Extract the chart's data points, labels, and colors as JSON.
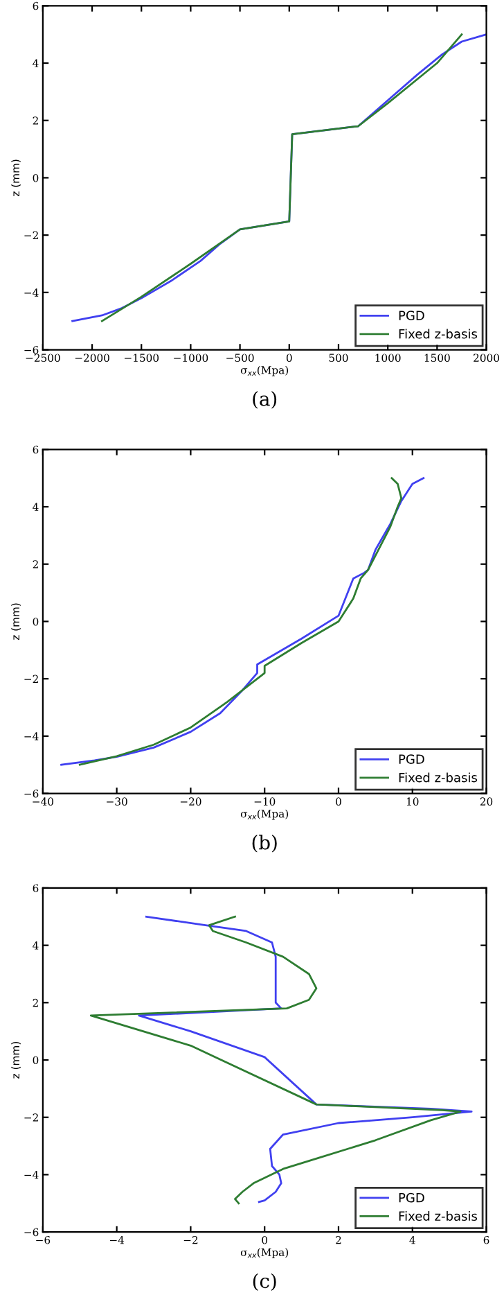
{
  "chart_data": [
    {
      "type": "line",
      "xlabel": "σ$_{xx}$(Mpa)",
      "ylabel": "z (mm)",
      "annotations": [
        "(a)"
      ],
      "xlim": [
        -2500,
        2000
      ],
      "ylim": [
        -6,
        6
      ],
      "xticks": [
        {
          "value": -2500,
          "label": "−2500"
        },
        {
          "value": -2000,
          "label": "−2000"
        },
        {
          "value": -1500,
          "label": "−1500"
        },
        {
          "value": -1000,
          "label": "−1000"
        },
        {
          "value": -500,
          "label": "−500"
        },
        0,
        500,
        1000,
        1500,
        2000
      ],
      "yticks": [
        {
          "value": -6,
          "label": "−6"
        },
        {
          "value": -4,
          "label": "−4"
        },
        {
          "value": -2,
          "label": "−2"
        },
        0,
        2,
        4,
        6
      ],
      "legend": "bottom right",
      "grid": false,
      "series": [
        {
          "name": "PGD",
          "color": "#4040f0",
          "x": [
            -2200,
            -1900,
            -1700,
            -1500,
            -1200,
            -900,
            -700,
            -500,
            0,
            30,
            700,
            1000,
            1300,
            1550,
            1750,
            2000
          ],
          "values": [
            -5,
            -4.8,
            -4.55,
            -4.2,
            -3.6,
            -2.9,
            -2.3,
            -1.8,
            -1.52,
            1.52,
            1.8,
            2.7,
            3.6,
            4.3,
            4.75,
            5
          ]
        },
        {
          "name": "Fixed z-basis",
          "color": "#2e7d32",
          "x": [
            -1900,
            -1500,
            -1000,
            -500,
            0,
            30,
            700,
            1000,
            1500,
            1750
          ],
          "values": [
            -5,
            -4.15,
            -3.0,
            -1.8,
            -1.52,
            1.52,
            1.8,
            2.6,
            4.0,
            5
          ]
        }
      ]
    },
    {
      "type": "line",
      "xlabel": "σ$_{xx}$(Mpa)",
      "ylabel": "z (mm)",
      "annotations": [
        "(b)"
      ],
      "xlim": [
        -40,
        20
      ],
      "ylim": [
        -6,
        6
      ],
      "xticks": [
        {
          "value": -40,
          "label": "−40"
        },
        {
          "value": -30,
          "label": "−30"
        },
        {
          "value": -20,
          "label": "−20"
        },
        {
          "value": -10,
          "label": "−10"
        },
        0,
        10,
        20
      ],
      "yticks": [
        {
          "value": -6,
          "label": "−6"
        },
        {
          "value": -4,
          "label": "−4"
        },
        {
          "value": -2,
          "label": "−2"
        },
        0,
        2,
        4,
        6
      ],
      "legend": "bottom right",
      "grid": false,
      "series": [
        {
          "name": "PGD",
          "color": "#4040f0",
          "x": [
            -37.5,
            -33,
            -30,
            -25,
            -20,
            -16,
            -13,
            -11,
            -11,
            -5,
            0,
            2,
            3.5,
            4,
            5,
            7,
            8.5,
            10,
            11.5
          ],
          "values": [
            -5,
            -4.85,
            -4.72,
            -4.4,
            -3.85,
            -3.2,
            -2.4,
            -1.8,
            -1.5,
            -0.6,
            0.2,
            1.5,
            1.7,
            1.8,
            2.5,
            3.4,
            4.2,
            4.8,
            5
          ]
        },
        {
          "name": "Fixed z-basis",
          "color": "#2e7d32",
          "x": [
            -35,
            -30,
            -25,
            -20,
            -15,
            -12,
            -10,
            -10,
            -5,
            0,
            2,
            3,
            4,
            5,
            7,
            8,
            8.5,
            8,
            7.2
          ],
          "values": [
            -5,
            -4.7,
            -4.3,
            -3.7,
            -2.8,
            -2.2,
            -1.8,
            -1.55,
            -0.75,
            0,
            0.8,
            1.5,
            1.8,
            2.3,
            3.3,
            4,
            4.3,
            4.8,
            5
          ]
        }
      ]
    },
    {
      "type": "line",
      "xlabel": "σ$_{xx}$(Mpa)",
      "ylabel": "z (mm)",
      "annotations": [
        "(c)"
      ],
      "xlim": [
        -6,
        6
      ],
      "ylim": [
        -6,
        6
      ],
      "xticks": [
        {
          "value": -6,
          "label": "−6"
        },
        {
          "value": -4,
          "label": "−4"
        },
        {
          "value": -2,
          "label": "−2"
        },
        0,
        2,
        4,
        6
      ],
      "yticks": [
        {
          "value": -6,
          "label": "−6"
        },
        {
          "value": -4,
          "label": "−4"
        },
        {
          "value": -2,
          "label": "−2"
        },
        0,
        2,
        4,
        6
      ],
      "legend": "bottom right",
      "grid": false,
      "series": [
        {
          "name": "PGD",
          "color": "#4040f0",
          "x": [
            -3.2,
            -1.6,
            -0.5,
            0.2,
            0.3,
            0.3,
            0.3,
            0.45,
            -3.4,
            -2,
            0,
            1.4,
            4.5,
            5.6,
            4,
            2,
            0.5,
            0.15,
            0.2,
            0.4,
            0.45,
            0.3,
            0,
            -0.15
          ],
          "values": [
            5,
            4.7,
            4.5,
            4.1,
            3.6,
            2.6,
            2.0,
            1.8,
            1.55,
            1.0,
            0.1,
            -1.55,
            -1.7,
            -1.8,
            -2.0,
            -2.2,
            -2.6,
            -3.1,
            -3.7,
            -4.0,
            -4.3,
            -4.6,
            -4.9,
            -4.95
          ]
        },
        {
          "name": "Fixed z-basis",
          "color": "#2e7d32",
          "x": [
            -0.8,
            -1.5,
            -1.4,
            -0.5,
            0.5,
            1.2,
            1.4,
            1.2,
            0.6,
            -4.7,
            -2,
            1.4,
            4.8,
            5.3,
            4.5,
            3,
            1.5,
            0.5,
            -0.3,
            -0.6,
            -0.8,
            -0.7
          ],
          "values": [
            5,
            4.7,
            4.5,
            4.1,
            3.6,
            3.0,
            2.5,
            2.1,
            1.8,
            1.55,
            0.5,
            -1.55,
            -1.75,
            -1.8,
            -2.1,
            -2.8,
            -3.4,
            -3.8,
            -4.3,
            -4.6,
            -4.85,
            -5
          ]
        }
      ]
    }
  ]
}
